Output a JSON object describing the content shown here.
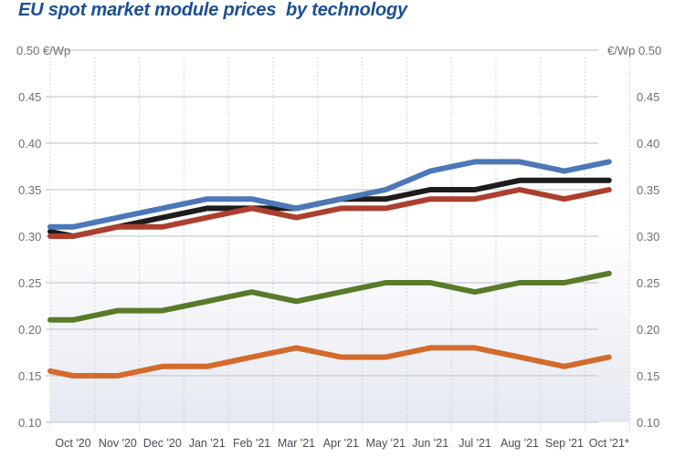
{
  "chart_data": {
    "type": "line",
    "title": "EU spot market module prices  by technology",
    "ylabel_left": "€/Wp",
    "ylabel_right": "€/Wp",
    "ylim": [
      0.1,
      0.5
    ],
    "yticks": [
      "0.10",
      "0.15",
      "0.20",
      "0.25",
      "0.30",
      "0.35",
      "0.40",
      "0.45",
      "0.50"
    ],
    "grid": true,
    "x": [
      "",
      "Oct '20",
      "Nov '20",
      "Dec '20",
      "Jan '21",
      "Feb '21",
      "Mar '21",
      "Apr '21",
      "May '21",
      "Jun '21",
      "Jul '21",
      "Aug '21",
      "Sep '21",
      "Oct '21*"
    ],
    "series": [
      {
        "color": "#d46a2c",
        "values": [
          0.155,
          0.15,
          0.15,
          0.16,
          0.16,
          0.17,
          0.18,
          0.17,
          0.17,
          0.18,
          0.18,
          0.17,
          0.16,
          0.17
        ]
      },
      {
        "color": "#5a7a2a",
        "values": [
          0.21,
          0.21,
          0.22,
          0.22,
          0.23,
          0.24,
          0.23,
          0.24,
          0.25,
          0.25,
          0.24,
          0.25,
          0.25,
          0.26
        ]
      },
      {
        "color": "#1c1c1c",
        "values": [
          0.305,
          0.3,
          0.31,
          0.32,
          0.33,
          0.33,
          0.33,
          0.34,
          0.34,
          0.35,
          0.35,
          0.36,
          0.36,
          0.36
        ]
      },
      {
        "color": "#4c77b8",
        "values": [
          0.31,
          0.31,
          0.32,
          0.33,
          0.34,
          0.34,
          0.33,
          0.34,
          0.35,
          0.37,
          0.38,
          0.38,
          0.37,
          0.38
        ]
      },
      {
        "color": "#ad3f2e",
        "values": [
          0.3,
          0.3,
          0.31,
          0.31,
          0.32,
          0.33,
          0.32,
          0.33,
          0.33,
          0.34,
          0.34,
          0.35,
          0.34,
          0.35
        ]
      }
    ]
  }
}
